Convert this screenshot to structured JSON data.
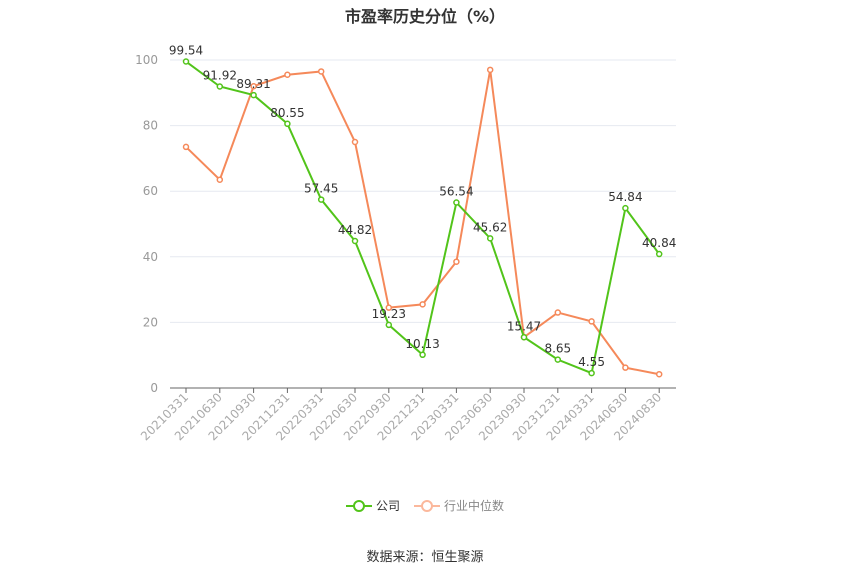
{
  "chart_data": {
    "type": "line",
    "title": "市盈率历史分位（%）",
    "categories": [
      "20210331",
      "20210630",
      "20210930",
      "20211231",
      "20220331",
      "20220630",
      "20220930",
      "20221231",
      "20230331",
      "20230630",
      "20230930",
      "20231231",
      "20240331",
      "20240630",
      "20240830"
    ],
    "series": [
      {
        "name": "公司",
        "color": "#52c41a",
        "values": [
          99.54,
          91.92,
          89.31,
          80.55,
          57.45,
          44.82,
          19.23,
          10.13,
          56.54,
          45.62,
          15.47,
          8.65,
          4.55,
          54.84,
          40.84
        ],
        "labels": [
          "99.54",
          "91.92",
          "89.31",
          "80.55",
          "57.45",
          "44.82",
          "19.23",
          "10.13",
          "56.54",
          "45.62",
          "15.47",
          "8.65",
          "4.55",
          "54.84",
          "40.84"
        ]
      },
      {
        "name": "行业中位数",
        "color": "#f5895a",
        "values": [
          73.5,
          63.5,
          92,
          95.5,
          96.5,
          75,
          24.5,
          25.5,
          38.5,
          97,
          15.5,
          23,
          20.3,
          6.2,
          4.2
        ]
      }
    ],
    "yticks": [
      "0",
      "20",
      "40",
      "60",
      "80",
      "100"
    ],
    "ylim": [
      0,
      100
    ],
    "grid": true,
    "legend": "bottom-center"
  },
  "source": "数据来源：恒生聚源"
}
